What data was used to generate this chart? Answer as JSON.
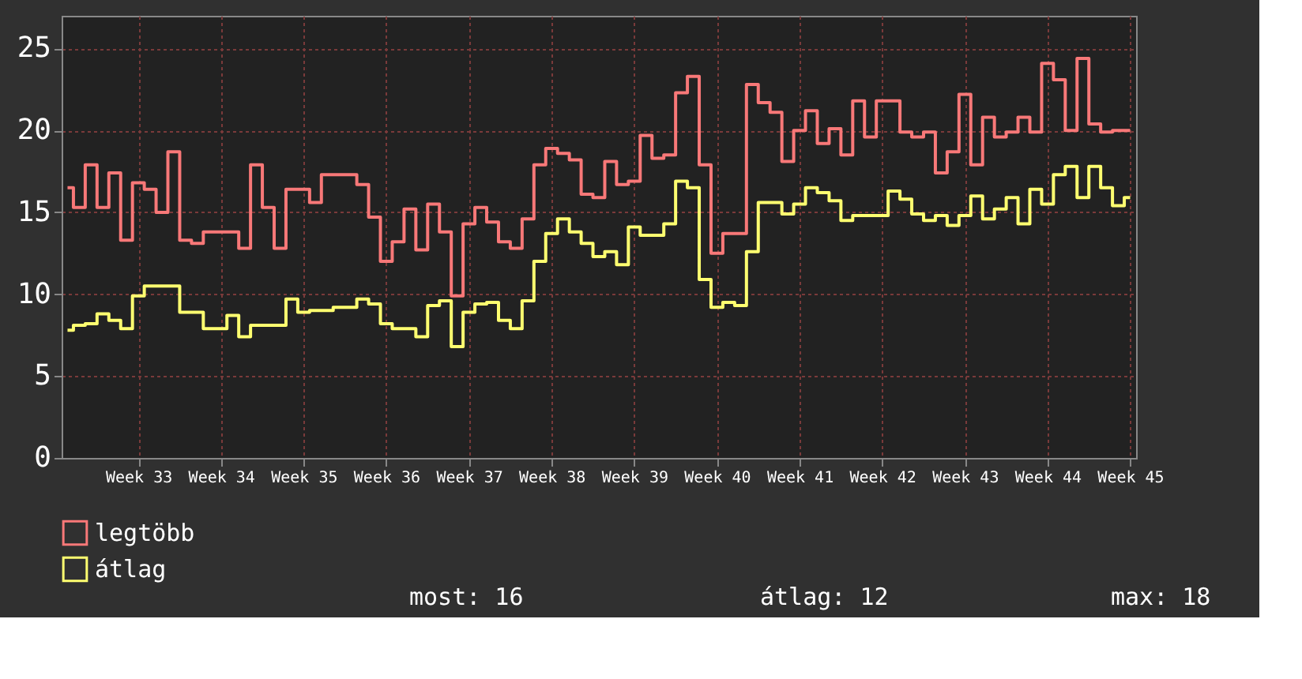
{
  "chart_data": {
    "type": "step",
    "ylim": [
      0,
      27
    ],
    "yticks": [
      0,
      5,
      10,
      15,
      20,
      25
    ],
    "categories": [
      null,
      null,
      null,
      null,
      null,
      null,
      "Week 33",
      null,
      null,
      null,
      null,
      null,
      null,
      "Week 34",
      null,
      null,
      null,
      null,
      null,
      null,
      "Week 35",
      null,
      null,
      null,
      null,
      null,
      null,
      "Week 36",
      null,
      null,
      null,
      null,
      null,
      null,
      "Week 37",
      null,
      null,
      null,
      null,
      null,
      null,
      "Week 38",
      null,
      null,
      null,
      null,
      null,
      null,
      "Week 39",
      null,
      null,
      null,
      null,
      null,
      null,
      "Week 40",
      null,
      null,
      null,
      null,
      null,
      null,
      "Week 41",
      null,
      null,
      null,
      null,
      null,
      null,
      "Week 42",
      null,
      null,
      null,
      null,
      null,
      null,
      "Week 43",
      null,
      null,
      null,
      null,
      null,
      null,
      "Week 44",
      null,
      null,
      null,
      null,
      null,
      null,
      "Week 45"
    ],
    "grid": true,
    "legend": "bottom left",
    "marker": "none",
    "line_style": "solid",
    "series": [
      {
        "name": "legtöbb",
        "color": "#f87878",
        "values": [
          16.5,
          15.3,
          17.9,
          15.3,
          17.4,
          13.3,
          16.8,
          16.4,
          15.0,
          18.7,
          13.3,
          13.1,
          13.8,
          13.8,
          13.8,
          12.8,
          17.9,
          15.3,
          12.8,
          16.4,
          16.4,
          15.6,
          17.3,
          17.3,
          17.3,
          16.7,
          14.7,
          12.0,
          13.2,
          15.2,
          12.7,
          15.5,
          13.8,
          9.9,
          14.3,
          15.3,
          14.4,
          13.2,
          12.8,
          14.6,
          17.9,
          18.9,
          18.6,
          18.2,
          16.1,
          15.9,
          18.1,
          16.7,
          16.9,
          19.7,
          18.3,
          18.5,
          22.3,
          23.3,
          17.9,
          12.5,
          13.7,
          13.7,
          22.8,
          21.7,
          21.1,
          18.1,
          20.0,
          21.2,
          19.2,
          20.1,
          18.5,
          21.8,
          19.6,
          21.8,
          21.8,
          19.9,
          19.6,
          19.9,
          17.4,
          18.7,
          22.2,
          17.9,
          20.8,
          19.6,
          19.9,
          20.8,
          19.9,
          24.1,
          23.1,
          20.0,
          24.4,
          20.4,
          19.9,
          20.0,
          20.0
        ]
      },
      {
        "name": "átlag",
        "color": "#ffff70",
        "values": [
          7.8,
          8.1,
          8.2,
          8.8,
          8.4,
          7.9,
          9.9,
          10.5,
          10.5,
          10.5,
          8.9,
          8.9,
          7.9,
          7.9,
          8.7,
          7.4,
          8.1,
          8.1,
          8.1,
          9.7,
          8.9,
          9.0,
          9.0,
          9.2,
          9.2,
          9.7,
          9.4,
          8.2,
          7.9,
          7.9,
          7.4,
          9.3,
          9.6,
          6.8,
          8.9,
          9.4,
          9.5,
          8.4,
          7.9,
          9.6,
          12.0,
          13.7,
          14.6,
          13.8,
          13.1,
          12.3,
          12.6,
          11.8,
          14.1,
          13.6,
          13.6,
          14.3,
          16.9,
          16.5,
          10.9,
          9.2,
          9.5,
          9.3,
          12.6,
          15.6,
          15.6,
          14.9,
          15.5,
          16.5,
          16.2,
          15.7,
          14.5,
          14.8,
          14.8,
          14.8,
          16.3,
          15.8,
          14.9,
          14.5,
          14.8,
          14.2,
          14.8,
          16.0,
          14.6,
          15.2,
          15.9,
          14.3,
          16.4,
          15.5,
          17.3,
          17.8,
          15.9,
          17.8,
          16.5,
          15.4,
          15.9
        ]
      }
    ],
    "annotations": [
      "most: 16",
      "átlag: 12",
      "max: 18"
    ]
  }
}
